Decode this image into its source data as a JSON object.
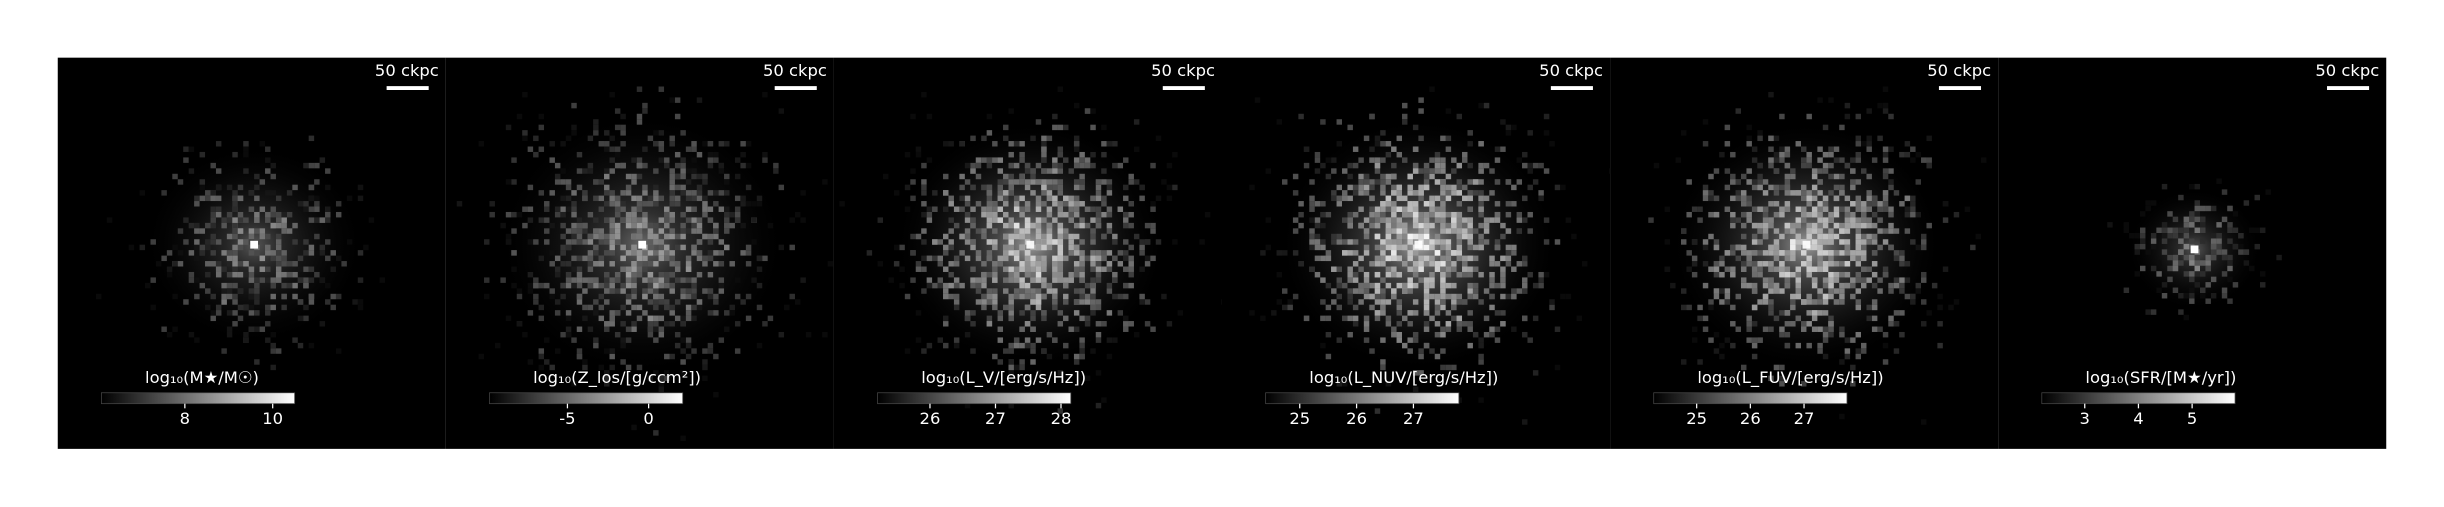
{
  "panels": [
    {
      "scale_bar": "50 ckpc",
      "colorbar": {
        "label": "log₁₀(M★/M☉)",
        "lim": [
          6.1,
          10.5
        ],
        "ticks": [
          8,
          10
        ]
      }
    },
    {
      "scale_bar": "50 ckpc",
      "colorbar": {
        "label": "log₁₀(Z_los/[g/ccm²])",
        "lim": [
          -9.8,
          2.1
        ],
        "ticks": [
          -5,
          0
        ]
      }
    },
    {
      "scale_bar": "50 ckpc",
      "colorbar": {
        "label": "log₁₀(L_V/[erg/s/Hz])",
        "lim": [
          25.2,
          28.15
        ],
        "ticks": [
          26,
          27,
          28
        ]
      }
    },
    {
      "scale_bar": "50 ckpc",
      "colorbar": {
        "label": "log₁₀(L_NUV/[erg/s/Hz])",
        "lim": [
          24.4,
          27.8
        ],
        "ticks": [
          25,
          26,
          27
        ]
      }
    },
    {
      "scale_bar": "50 ckpc",
      "colorbar": {
        "label": "log₁₀(L_FUV/[erg/s/Hz])",
        "lim": [
          24.2,
          27.8
        ],
        "ticks": [
          25,
          26,
          27
        ]
      }
    },
    {
      "scale_bar": "50 ckpc",
      "colorbar": {
        "label": "log₁₀(SFR/[M★/yr])",
        "lim": [
          2.2,
          5.8
        ],
        "ticks": [
          3,
          4,
          5
        ]
      }
    }
  ]
}
